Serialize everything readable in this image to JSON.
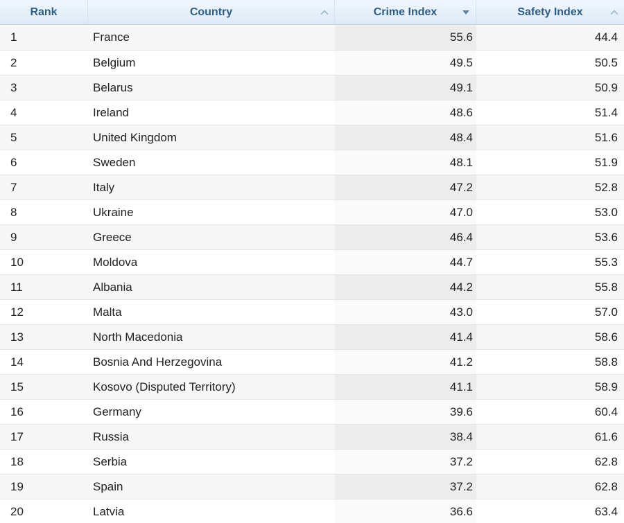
{
  "table": {
    "columns": [
      {
        "label": "Rank",
        "sort": "none"
      },
      {
        "label": "Country",
        "sort": "asc-inactive"
      },
      {
        "label": "Crime Index",
        "sort": "desc-active"
      },
      {
        "label": "Safety Index",
        "sort": "asc-inactive"
      }
    ],
    "rows": [
      {
        "rank": "1",
        "country": "France",
        "crime": "55.6",
        "safety": "44.4"
      },
      {
        "rank": "2",
        "country": "Belgium",
        "crime": "49.5",
        "safety": "50.5"
      },
      {
        "rank": "3",
        "country": "Belarus",
        "crime": "49.1",
        "safety": "50.9"
      },
      {
        "rank": "4",
        "country": "Ireland",
        "crime": "48.6",
        "safety": "51.4"
      },
      {
        "rank": "5",
        "country": "United Kingdom",
        "crime": "48.4",
        "safety": "51.6"
      },
      {
        "rank": "6",
        "country": "Sweden",
        "crime": "48.1",
        "safety": "51.9"
      },
      {
        "rank": "7",
        "country": "Italy",
        "crime": "47.2",
        "safety": "52.8"
      },
      {
        "rank": "8",
        "country": "Ukraine",
        "crime": "47.0",
        "safety": "53.0"
      },
      {
        "rank": "9",
        "country": "Greece",
        "crime": "46.4",
        "safety": "53.6"
      },
      {
        "rank": "10",
        "country": "Moldova",
        "crime": "44.7",
        "safety": "55.3"
      },
      {
        "rank": "11",
        "country": "Albania",
        "crime": "44.2",
        "safety": "55.8"
      },
      {
        "rank": "12",
        "country": "Malta",
        "crime": "43.0",
        "safety": "57.0"
      },
      {
        "rank": "13",
        "country": "North Macedonia",
        "crime": "41.4",
        "safety": "58.6"
      },
      {
        "rank": "14",
        "country": "Bosnia And Herzegovina",
        "crime": "41.2",
        "safety": "58.8"
      },
      {
        "rank": "15",
        "country": "Kosovo (Disputed Territory)",
        "crime": "41.1",
        "safety": "58.9"
      },
      {
        "rank": "16",
        "country": "Germany",
        "crime": "39.6",
        "safety": "60.4"
      },
      {
        "rank": "17",
        "country": "Russia",
        "crime": "38.4",
        "safety": "61.6"
      },
      {
        "rank": "18",
        "country": "Serbia",
        "crime": "37.2",
        "safety": "62.8"
      },
      {
        "rank": "19",
        "country": "Spain",
        "crime": "37.2",
        "safety": "62.8"
      },
      {
        "rank": "20",
        "country": "Latvia",
        "crime": "36.6",
        "safety": "63.4"
      }
    ]
  },
  "colors": {
    "header_bg_top": "#eff6fd",
    "header_bg_bottom": "#dce9f6",
    "header_text": "#2d5e86",
    "sort_inactive": "#a8bed2",
    "sort_active": "#657f95",
    "row_odd_bg": "#f7f7f7",
    "row_even_bg": "#ffffff",
    "crime_col_odd_bg": "#ececec",
    "crime_col_even_bg": "#fafafa",
    "row_border": "#e4e4e4",
    "body_text": "#222222"
  }
}
